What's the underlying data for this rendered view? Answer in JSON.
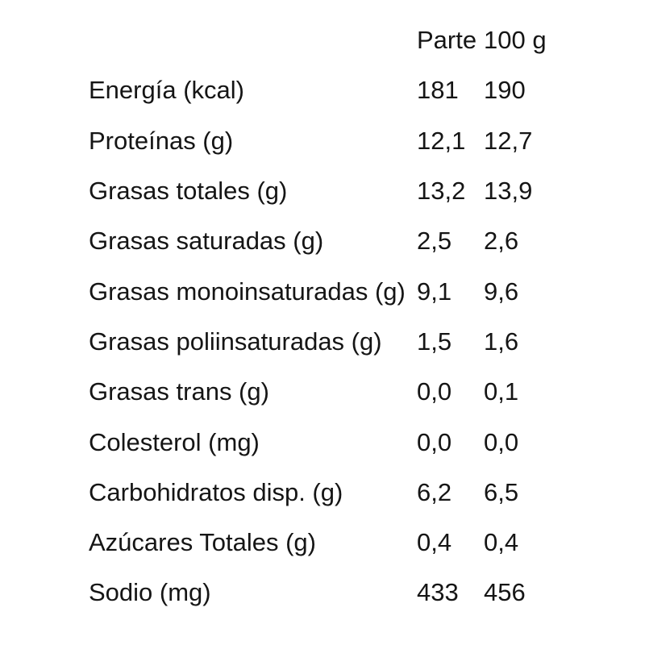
{
  "page": {
    "background_color": "#ffffff",
    "text_color": "#151515"
  },
  "table": {
    "header": {
      "col_parte": "Parte",
      "col_100g": "100 g"
    },
    "rows": [
      {
        "label": "Energía (kcal)",
        "parte": "181",
        "per100": "190"
      },
      {
        "label": "Proteínas (g)",
        "parte": "12,1",
        "per100": "12,7"
      },
      {
        "label": "Grasas totales (g)",
        "parte": "13,2",
        "per100": "13,9"
      },
      {
        "label": "Grasas saturadas (g)",
        "parte": "2,5",
        "per100": "2,6"
      },
      {
        "label": "Grasas monoinsaturadas (g)",
        "parte": "9,1",
        "per100": "9,6"
      },
      {
        "label": "Grasas poliinsaturadas (g)",
        "parte": "1,5",
        "per100": "1,6"
      },
      {
        "label": "Grasas trans (g)",
        "parte": "0,0",
        "per100": "0,1"
      },
      {
        "label": "Colesterol (mg)",
        "parte": "0,0",
        "per100": "0,0"
      },
      {
        "label": "Carbohidratos disp. (g)",
        "parte": "6,2",
        "per100": "6,5"
      },
      {
        "label": "Azúcares Totales (g)",
        "parte": "0,4",
        "per100": "0,4"
      },
      {
        "label": "Sodio (mg)",
        "parte": "433",
        "per100": "456"
      }
    ]
  }
}
